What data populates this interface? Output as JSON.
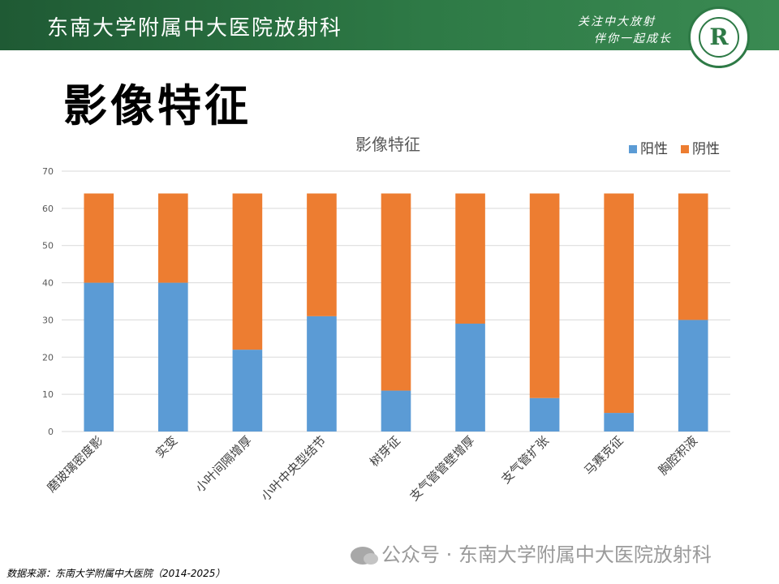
{
  "banner": {
    "title": "东南大学附属中大医院放射科",
    "slogan_line1": "关注中大放射",
    "slogan_line2": "伴你一起成长",
    "logo_mark": "R"
  },
  "page_title": "影像特征",
  "chart_data": {
    "type": "bar",
    "stacked": true,
    "title": "影像特征",
    "xlabel": "",
    "ylabel": "",
    "ylim": [
      0,
      70
    ],
    "yticks": [
      0,
      10,
      20,
      30,
      40,
      50,
      60,
      70
    ],
    "grid": true,
    "legend_position": "top-right",
    "categories": [
      "磨玻璃密度影",
      "实变",
      "小叶间隔增厚",
      "小叶中央型结节",
      "树芽征",
      "支气管管壁增厚",
      "支气管扩张",
      "马赛克征",
      "胸腔积液"
    ],
    "series": [
      {
        "name": "阳性",
        "color": "#5b9bd5",
        "values": [
          40,
          40,
          22,
          31,
          11,
          29,
          9,
          5,
          30
        ]
      },
      {
        "name": "阴性",
        "color": "#ed7d31",
        "values": [
          24,
          24,
          42,
          33,
          53,
          35,
          55,
          59,
          34
        ]
      }
    ]
  },
  "watermark": "公众号 · 东南大学附属中大医院放射科",
  "source": "数据来源：东南大学附属中大医院（2014-2025）"
}
